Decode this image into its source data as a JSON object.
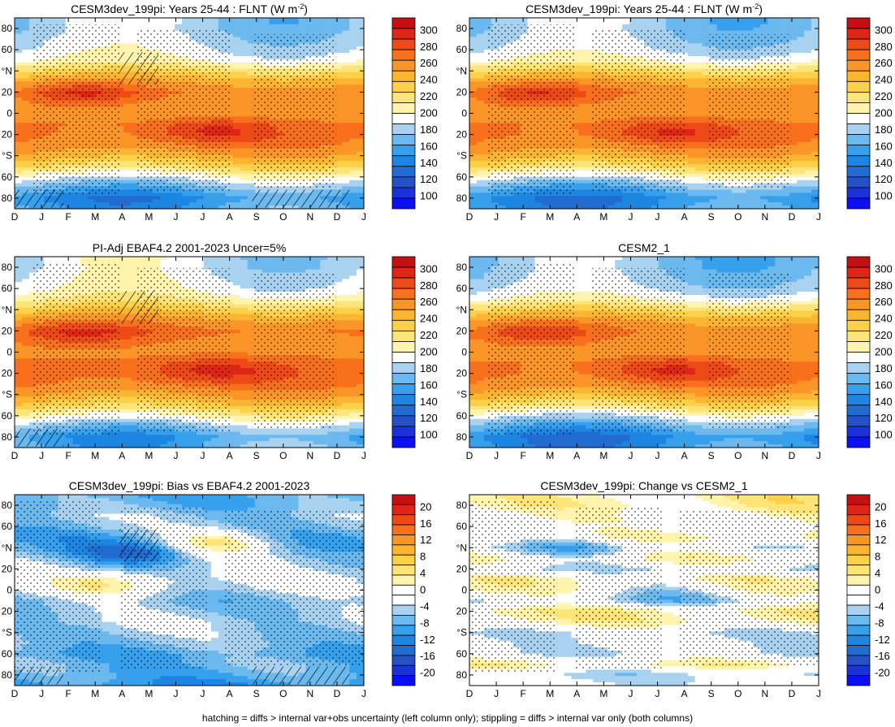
{
  "chart_data": {
    "type": "heatmap",
    "shared_axes": {
      "x_ticks": [
        "D",
        "J",
        "F",
        "M",
        "A",
        "M",
        "J",
        "J",
        "A",
        "S",
        "O",
        "N",
        "D",
        "J"
      ],
      "y_ticks": [
        "80",
        "60",
        "°N",
        "20",
        "0",
        "20",
        "°S",
        "60",
        "80"
      ]
    },
    "footnote": "hatching = diffs > internal var+obs uncertainty (left column only); stippling = diffs > internal var only (both columns)",
    "colorbars": {
      "abs": {
        "labels": [
          "300",
          "280",
          "260",
          "240",
          "220",
          "200",
          "180",
          "160",
          "140",
          "120",
          "100"
        ],
        "colors": [
          "#c50f12",
          "#dd2616",
          "#ee4a17",
          "#f8701c",
          "#fb9527",
          "#fbb531",
          "#fcd048",
          "#fde478",
          "#fef4ad",
          "#ffffff",
          "#a8d2f0",
          "#6bb9ee",
          "#37a0ec",
          "#1d85e2",
          "#216bd1",
          "#2550c8",
          "#1a33d6",
          "#0a0ff5"
        ]
      },
      "diff": {
        "labels": [
          "20",
          "16",
          "12",
          "8",
          "4",
          "0",
          "-4",
          "-8",
          "-12",
          "-16",
          "-20"
        ],
        "colors": [
          "#c50f12",
          "#dd2616",
          "#ee4a17",
          "#f8701c",
          "#fb9527",
          "#fbb531",
          "#fcd048",
          "#fde478",
          "#fef4ad",
          "#ffffff",
          "#ffffff",
          "#a8d2f0",
          "#6bb9ee",
          "#37a0ec",
          "#1d85e2",
          "#216bd1",
          "#2550c8",
          "#1a33d6",
          "#0a0ff5"
        ]
      }
    },
    "panels": [
      {
        "id": "top-left",
        "title": "CESM3dev_199pi: Years 25-44 : FLNT (W m",
        "title_sup": "-2",
        "title_end": ")",
        "kind": "abs",
        "zonal_mean": [
          [
            -90,
            160
          ],
          [
            -80,
            150
          ],
          [
            -70,
            170
          ],
          [
            -60,
            195
          ],
          [
            -50,
            225
          ],
          [
            -40,
            245
          ],
          [
            -30,
            258
          ],
          [
            -20,
            262
          ],
          [
            -10,
            262
          ],
          [
            0,
            252
          ],
          [
            10,
            252
          ],
          [
            20,
            258
          ],
          [
            30,
            246
          ],
          [
            40,
            225
          ],
          [
            50,
            200
          ],
          [
            60,
            190
          ],
          [
            70,
            185
          ],
          [
            80,
            180
          ],
          [
            90,
            180
          ]
        ],
        "hot_spots": [
          {
            "lat": 18,
            "month": 2.5,
            "value": 285
          },
          {
            "lat": -17,
            "month": 7.5,
            "value": 288
          }
        ],
        "hatch_regions": 3,
        "stipple": true
      },
      {
        "id": "top-right",
        "title": "CESM3dev_199pi: Years 25-44 : FLNT (W m",
        "title_sup": "-2",
        "title_end": ")",
        "kind": "abs",
        "zonal_mean": [
          [
            -90,
            155
          ],
          [
            -80,
            148
          ],
          [
            -70,
            168
          ],
          [
            -60,
            195
          ],
          [
            -50,
            225
          ],
          [
            -40,
            245
          ],
          [
            -30,
            258
          ],
          [
            -20,
            263
          ],
          [
            -10,
            262
          ],
          [
            0,
            252
          ],
          [
            10,
            253
          ],
          [
            20,
            258
          ],
          [
            30,
            246
          ],
          [
            40,
            225
          ],
          [
            50,
            200
          ],
          [
            60,
            188
          ],
          [
            70,
            182
          ],
          [
            80,
            178
          ],
          [
            90,
            178
          ]
        ],
        "hot_spots": [
          {
            "lat": 18,
            "month": 2.5,
            "value": 283
          },
          {
            "lat": -17,
            "month": 7.5,
            "value": 287
          }
        ],
        "hatch_regions": 0,
        "stipple": true
      },
      {
        "id": "mid-left",
        "title": "PI-Adj EBAF4.2 2001-2023 Uncer=5%",
        "kind": "abs",
        "zonal_mean": [
          [
            -90,
            165
          ],
          [
            -80,
            158
          ],
          [
            -70,
            178
          ],
          [
            -60,
            205
          ],
          [
            -50,
            232
          ],
          [
            -40,
            250
          ],
          [
            -30,
            262
          ],
          [
            -20,
            267
          ],
          [
            -10,
            265
          ],
          [
            0,
            256
          ],
          [
            10,
            258
          ],
          [
            20,
            264
          ],
          [
            30,
            252
          ],
          [
            40,
            232
          ],
          [
            50,
            210
          ],
          [
            60,
            196
          ],
          [
            70,
            192
          ],
          [
            80,
            188
          ],
          [
            90,
            188
          ]
        ],
        "hot_spots": [
          {
            "lat": 18,
            "month": 2.5,
            "value": 287
          },
          {
            "lat": -17,
            "month": 7.5,
            "value": 290
          }
        ],
        "hatch_regions": 2,
        "stipple": true
      },
      {
        "id": "mid-right",
        "title": "CESM2_1",
        "kind": "abs",
        "zonal_mean": [
          [
            -90,
            152
          ],
          [
            -80,
            146
          ],
          [
            -70,
            166
          ],
          [
            -60,
            192
          ],
          [
            -50,
            223
          ],
          [
            -40,
            244
          ],
          [
            -30,
            258
          ],
          [
            -20,
            263
          ],
          [
            -10,
            262
          ],
          [
            0,
            253
          ],
          [
            10,
            254
          ],
          [
            20,
            259
          ],
          [
            30,
            247
          ],
          [
            40,
            226
          ],
          [
            50,
            200
          ],
          [
            60,
            186
          ],
          [
            70,
            180
          ],
          [
            80,
            176
          ],
          [
            90,
            176
          ]
        ],
        "hot_spots": [
          {
            "lat": 18,
            "month": 2.5,
            "value": 282
          },
          {
            "lat": -17,
            "month": 7.5,
            "value": 288
          }
        ],
        "hatch_regions": 0,
        "stipple": true
      },
      {
        "id": "bottom-left",
        "title": "CESM3dev_199pi: Bias vs EBAF4.2 2001-2023",
        "kind": "diff",
        "zonal_mean": [
          [
            -90,
            -10
          ],
          [
            -80,
            -8
          ],
          [
            -70,
            -7
          ],
          [
            -60,
            -8
          ],
          [
            -50,
            -6
          ],
          [
            -40,
            -5
          ],
          [
            -30,
            -4
          ],
          [
            -20,
            -5
          ],
          [
            -10,
            -6
          ],
          [
            0,
            -4
          ],
          [
            10,
            -3
          ],
          [
            20,
            -4
          ],
          [
            30,
            -5
          ],
          [
            40,
            -7
          ],
          [
            50,
            -8
          ],
          [
            60,
            -6
          ],
          [
            70,
            -5
          ],
          [
            80,
            -7
          ],
          [
            90,
            -8
          ]
        ],
        "hot_spots": [
          {
            "lat": 35,
            "month": 4.5,
            "value": -14
          },
          {
            "lat": 5,
            "month": 3.5,
            "value": 3
          },
          {
            "lat": 45,
            "month": 7.5,
            "value": 3
          }
        ],
        "hatch_regions": 3,
        "stipple": true
      },
      {
        "id": "bottom-right",
        "title": "CESM3dev_199pi: Change vs CESM2_1",
        "kind": "diff",
        "zonal_mean": [
          [
            -90,
            -2
          ],
          [
            -80,
            -4
          ],
          [
            -70,
            2
          ],
          [
            -60,
            -3
          ],
          [
            -50,
            -2
          ],
          [
            -40,
            -3
          ],
          [
            -30,
            2
          ],
          [
            -20,
            3
          ],
          [
            -10,
            -3
          ],
          [
            0,
            1
          ],
          [
            10,
            2
          ],
          [
            20,
            -3
          ],
          [
            30,
            2
          ],
          [
            40,
            -2
          ],
          [
            50,
            2
          ],
          [
            60,
            -1
          ],
          [
            70,
            0
          ],
          [
            80,
            2
          ],
          [
            90,
            2
          ]
        ],
        "hot_spots": [
          {
            "lat": 40,
            "month": 4.0,
            "value": -8
          },
          {
            "lat": -3,
            "month": 7.5,
            "value": -5
          },
          {
            "lat": 85,
            "month": 12.0,
            "value": 4
          }
        ],
        "hatch_regions": 0,
        "stipple": true
      }
    ]
  }
}
